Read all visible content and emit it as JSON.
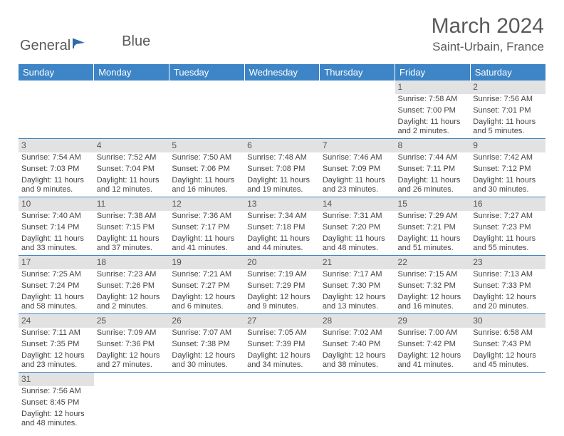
{
  "brand": {
    "part1": "General",
    "part2": "Blue"
  },
  "title": "March 2024",
  "location": "Saint-Urbain, France",
  "colors": {
    "header_bg": "#3d85c6",
    "daynum_bg": "#e2e2e2",
    "text": "#444444",
    "title_text": "#5a5a5a",
    "row_border": "#3d85c6",
    "logo_fill": "#2f6aa8"
  },
  "weekdays": [
    "Sunday",
    "Monday",
    "Tuesday",
    "Wednesday",
    "Thursday",
    "Friday",
    "Saturday"
  ],
  "days": [
    {
      "n": "",
      "sr": "",
      "ss": "",
      "dl": ""
    },
    {
      "n": "",
      "sr": "",
      "ss": "",
      "dl": ""
    },
    {
      "n": "",
      "sr": "",
      "ss": "",
      "dl": ""
    },
    {
      "n": "",
      "sr": "",
      "ss": "",
      "dl": ""
    },
    {
      "n": "",
      "sr": "",
      "ss": "",
      "dl": ""
    },
    {
      "n": "1",
      "sr": "Sunrise: 7:58 AM",
      "ss": "Sunset: 7:00 PM",
      "dl": "Daylight: 11 hours and 2 minutes."
    },
    {
      "n": "2",
      "sr": "Sunrise: 7:56 AM",
      "ss": "Sunset: 7:01 PM",
      "dl": "Daylight: 11 hours and 5 minutes."
    },
    {
      "n": "3",
      "sr": "Sunrise: 7:54 AM",
      "ss": "Sunset: 7:03 PM",
      "dl": "Daylight: 11 hours and 9 minutes."
    },
    {
      "n": "4",
      "sr": "Sunrise: 7:52 AM",
      "ss": "Sunset: 7:04 PM",
      "dl": "Daylight: 11 hours and 12 minutes."
    },
    {
      "n": "5",
      "sr": "Sunrise: 7:50 AM",
      "ss": "Sunset: 7:06 PM",
      "dl": "Daylight: 11 hours and 16 minutes."
    },
    {
      "n": "6",
      "sr": "Sunrise: 7:48 AM",
      "ss": "Sunset: 7:08 PM",
      "dl": "Daylight: 11 hours and 19 minutes."
    },
    {
      "n": "7",
      "sr": "Sunrise: 7:46 AM",
      "ss": "Sunset: 7:09 PM",
      "dl": "Daylight: 11 hours and 23 minutes."
    },
    {
      "n": "8",
      "sr": "Sunrise: 7:44 AM",
      "ss": "Sunset: 7:11 PM",
      "dl": "Daylight: 11 hours and 26 minutes."
    },
    {
      "n": "9",
      "sr": "Sunrise: 7:42 AM",
      "ss": "Sunset: 7:12 PM",
      "dl": "Daylight: 11 hours and 30 minutes."
    },
    {
      "n": "10",
      "sr": "Sunrise: 7:40 AM",
      "ss": "Sunset: 7:14 PM",
      "dl": "Daylight: 11 hours and 33 minutes."
    },
    {
      "n": "11",
      "sr": "Sunrise: 7:38 AM",
      "ss": "Sunset: 7:15 PM",
      "dl": "Daylight: 11 hours and 37 minutes."
    },
    {
      "n": "12",
      "sr": "Sunrise: 7:36 AM",
      "ss": "Sunset: 7:17 PM",
      "dl": "Daylight: 11 hours and 41 minutes."
    },
    {
      "n": "13",
      "sr": "Sunrise: 7:34 AM",
      "ss": "Sunset: 7:18 PM",
      "dl": "Daylight: 11 hours and 44 minutes."
    },
    {
      "n": "14",
      "sr": "Sunrise: 7:31 AM",
      "ss": "Sunset: 7:20 PM",
      "dl": "Daylight: 11 hours and 48 minutes."
    },
    {
      "n": "15",
      "sr": "Sunrise: 7:29 AM",
      "ss": "Sunset: 7:21 PM",
      "dl": "Daylight: 11 hours and 51 minutes."
    },
    {
      "n": "16",
      "sr": "Sunrise: 7:27 AM",
      "ss": "Sunset: 7:23 PM",
      "dl": "Daylight: 11 hours and 55 minutes."
    },
    {
      "n": "17",
      "sr": "Sunrise: 7:25 AM",
      "ss": "Sunset: 7:24 PM",
      "dl": "Daylight: 11 hours and 58 minutes."
    },
    {
      "n": "18",
      "sr": "Sunrise: 7:23 AM",
      "ss": "Sunset: 7:26 PM",
      "dl": "Daylight: 12 hours and 2 minutes."
    },
    {
      "n": "19",
      "sr": "Sunrise: 7:21 AM",
      "ss": "Sunset: 7:27 PM",
      "dl": "Daylight: 12 hours and 6 minutes."
    },
    {
      "n": "20",
      "sr": "Sunrise: 7:19 AM",
      "ss": "Sunset: 7:29 PM",
      "dl": "Daylight: 12 hours and 9 minutes."
    },
    {
      "n": "21",
      "sr": "Sunrise: 7:17 AM",
      "ss": "Sunset: 7:30 PM",
      "dl": "Daylight: 12 hours and 13 minutes."
    },
    {
      "n": "22",
      "sr": "Sunrise: 7:15 AM",
      "ss": "Sunset: 7:32 PM",
      "dl": "Daylight: 12 hours and 16 minutes."
    },
    {
      "n": "23",
      "sr": "Sunrise: 7:13 AM",
      "ss": "Sunset: 7:33 PM",
      "dl": "Daylight: 12 hours and 20 minutes."
    },
    {
      "n": "24",
      "sr": "Sunrise: 7:11 AM",
      "ss": "Sunset: 7:35 PM",
      "dl": "Daylight: 12 hours and 23 minutes."
    },
    {
      "n": "25",
      "sr": "Sunrise: 7:09 AM",
      "ss": "Sunset: 7:36 PM",
      "dl": "Daylight: 12 hours and 27 minutes."
    },
    {
      "n": "26",
      "sr": "Sunrise: 7:07 AM",
      "ss": "Sunset: 7:38 PM",
      "dl": "Daylight: 12 hours and 30 minutes."
    },
    {
      "n": "27",
      "sr": "Sunrise: 7:05 AM",
      "ss": "Sunset: 7:39 PM",
      "dl": "Daylight: 12 hours and 34 minutes."
    },
    {
      "n": "28",
      "sr": "Sunrise: 7:02 AM",
      "ss": "Sunset: 7:40 PM",
      "dl": "Daylight: 12 hours and 38 minutes."
    },
    {
      "n": "29",
      "sr": "Sunrise: 7:00 AM",
      "ss": "Sunset: 7:42 PM",
      "dl": "Daylight: 12 hours and 41 minutes."
    },
    {
      "n": "30",
      "sr": "Sunrise: 6:58 AM",
      "ss": "Sunset: 7:43 PM",
      "dl": "Daylight: 12 hours and 45 minutes."
    },
    {
      "n": "31",
      "sr": "Sunrise: 7:56 AM",
      "ss": "Sunset: 8:45 PM",
      "dl": "Daylight: 12 hours and 48 minutes."
    },
    {
      "n": "",
      "sr": "",
      "ss": "",
      "dl": ""
    },
    {
      "n": "",
      "sr": "",
      "ss": "",
      "dl": ""
    },
    {
      "n": "",
      "sr": "",
      "ss": "",
      "dl": ""
    },
    {
      "n": "",
      "sr": "",
      "ss": "",
      "dl": ""
    },
    {
      "n": "",
      "sr": "",
      "ss": "",
      "dl": ""
    },
    {
      "n": "",
      "sr": "",
      "ss": "",
      "dl": ""
    }
  ]
}
